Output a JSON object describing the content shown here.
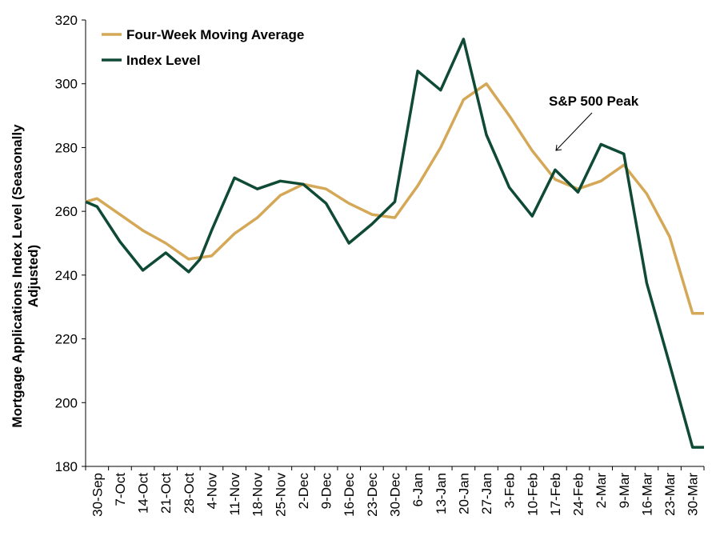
{
  "chart_data": {
    "type": "line",
    "ylabel_lines": [
      "Mortgage Applications Index Level (Seasonally",
      "Adjusted)"
    ],
    "xlabel": "",
    "ylim": [
      180,
      320
    ],
    "yticks": [
      "180",
      "200",
      "220",
      "240",
      "260",
      "280",
      "300",
      "320"
    ],
    "yticks_values": [
      180,
      200,
      220,
      240,
      260,
      280,
      300,
      320
    ],
    "categories": [
      "30-Sep",
      "7-Oct",
      "14-Oct",
      "21-Oct",
      "28-Oct",
      "4-Nov",
      "11-Nov",
      "18-Nov",
      "25-Nov",
      "2-Dec",
      "9-Dec",
      "16-Dec",
      "23-Dec",
      "30-Dec",
      "6-Jan",
      "13-Jan",
      "20-Jan",
      "27-Jan",
      "3-Feb",
      "10-Feb",
      "17-Feb",
      "24-Feb",
      "2-Mar",
      "9-Mar",
      "16-Mar",
      "23-Mar",
      "30-Mar"
    ],
    "x": [
      0,
      0.5,
      1.5,
      2.5,
      3.5,
      4.5,
      5,
      5.5,
      6.5,
      7.5,
      8.5,
      9.5,
      10.5,
      11.5,
      12.5,
      13.5,
      14.5,
      15.5,
      16.5,
      17.5,
      18.5,
      19.5,
      20.5,
      21.5,
      22.5,
      23.5,
      24.5,
      25.5,
      26.5,
      27
    ],
    "series": [
      {
        "name": "Four-Week Moving Average",
        "color": "#D4A857",
        "values": [
          263,
          264,
          259,
          254,
          250,
          245,
          245.5,
          246,
          253,
          258,
          265,
          268.5,
          267,
          262.5,
          259,
          258,
          268,
          280,
          295,
          300,
          290,
          279,
          270,
          267,
          269.5,
          274.5,
          265.5,
          252,
          228,
          228
        ]
      },
      {
        "name": "Index Level",
        "color": "#0F4A35",
        "values": [
          263,
          261.5,
          250.5,
          241.5,
          247,
          241,
          245,
          254,
          270.5,
          267,
          269.5,
          268.5,
          262.5,
          250,
          256,
          263,
          304,
          298,
          314,
          284,
          267.5,
          258.5,
          273,
          266,
          281,
          278,
          237.5,
          212,
          186,
          186
        ]
      }
    ],
    "annotation": {
      "text": "S&P 500 Peak",
      "x": 18.5,
      "y": 279,
      "arrow_icon": "arrow-icon"
    },
    "legend_position": "top-left",
    "grid": false
  }
}
